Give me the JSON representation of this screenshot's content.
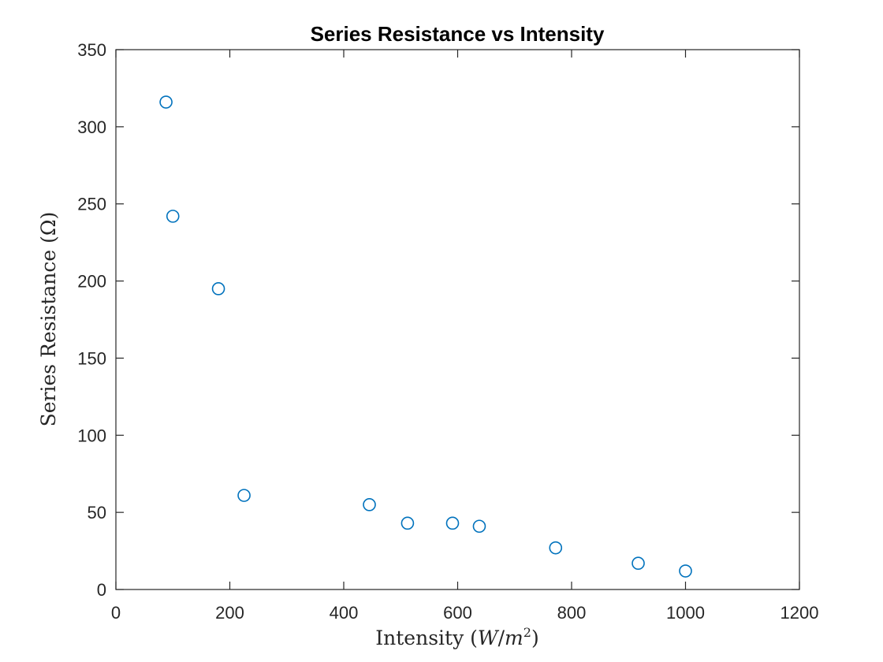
{
  "chart_data": {
    "type": "scatter",
    "title": "Series Resistance vs Intensity",
    "xlabel": {
      "prefix": "Intensity (",
      "var1": "W",
      "slash": "/",
      "var2": "m",
      "exp": "2",
      "suffix": ")"
    },
    "ylabel": "Series Resistance (Ω)",
    "xlim": [
      0,
      1200
    ],
    "ylim": [
      0,
      350
    ],
    "xticks": [
      0,
      200,
      400,
      600,
      800,
      1000,
      1200
    ],
    "yticks": [
      0,
      50,
      100,
      150,
      200,
      250,
      300,
      350
    ],
    "grid": false,
    "marker": "circle",
    "color": "#0072BD",
    "points": [
      {
        "x": 88,
        "y": 316
      },
      {
        "x": 100,
        "y": 242
      },
      {
        "x": 180,
        "y": 195
      },
      {
        "x": 225,
        "y": 61
      },
      {
        "x": 445,
        "y": 55
      },
      {
        "x": 512,
        "y": 43
      },
      {
        "x": 591,
        "y": 43
      },
      {
        "x": 638,
        "y": 41
      },
      {
        "x": 772,
        "y": 27
      },
      {
        "x": 917,
        "y": 17
      },
      {
        "x": 1000,
        "y": 12
      }
    ]
  }
}
